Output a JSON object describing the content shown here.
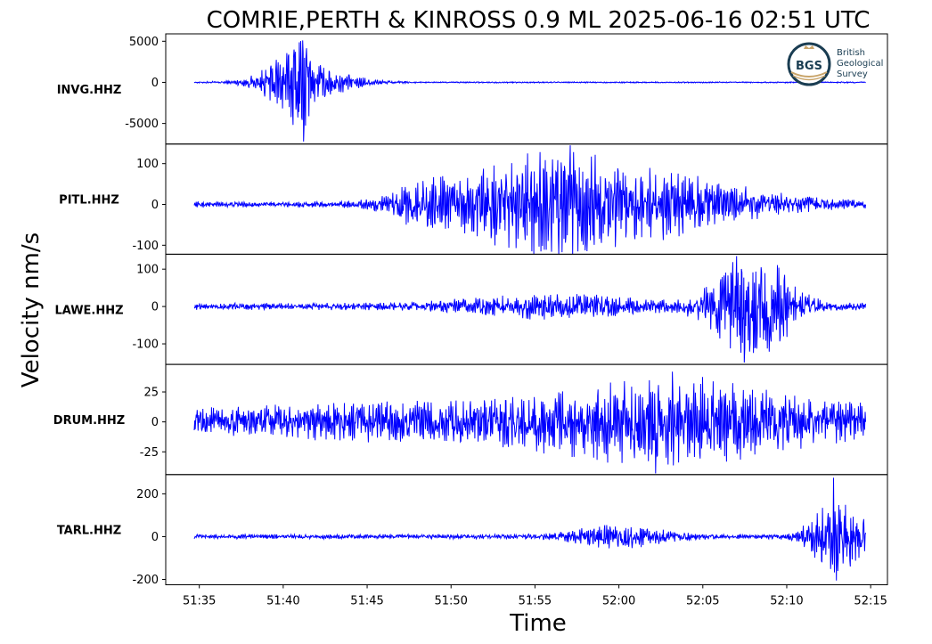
{
  "chart_data": {
    "type": "line",
    "title": "COMRIE,PERTH & KINROSS 0.9 ML   2025-06-16 02:51 UTC",
    "xlabel": "Time",
    "ylabel": "Velocity nm/s",
    "xlim": [
      "51:33",
      "52:16"
    ],
    "x_ticks": [
      "51:35",
      "51:40",
      "51:45",
      "51:50",
      "51:55",
      "52:00",
      "52:05",
      "52:10",
      "52:15"
    ],
    "trace_start": "51:34.7",
    "trace_end": "52:14.7",
    "line_color": "#0000ff",
    "logo": {
      "mark": "BGS",
      "lines": [
        "British",
        "Geological",
        "Survey"
      ]
    },
    "panels": [
      {
        "channel": "INVG.HHZ",
        "ylim": [
          -7500,
          5900
        ],
        "yticks": [
          5000,
          0,
          -5000
        ],
        "ytick_labels": [
          "5000",
          "0",
          "-5000"
        ],
        "bursts": [
          {
            "t": "51:40.5",
            "amp": 1800,
            "width": 1.6
          },
          {
            "t": "51:41.0",
            "amp": 5000,
            "width": 0.4
          },
          {
            "t": "51:41.5",
            "amp": 1400,
            "width": 3
          }
        ],
        "noise": 60,
        "spike_min": -7200,
        "spike_max": 5100
      },
      {
        "channel": "PITL.HHZ",
        "ylim": [
          -122,
          148
        ],
        "yticks": [
          100,
          0,
          -100
        ],
        "ytick_labels": [
          "100",
          "0",
          "-100"
        ],
        "bursts": [
          {
            "t": "51:48.5",
            "amp": 25,
            "width": 2
          },
          {
            "t": "51:55.5",
            "amp": 80,
            "width": 6
          },
          {
            "t": "52:03",
            "amp": 40,
            "width": 7
          }
        ],
        "noise": 5,
        "spike_max": 145,
        "spike_min": -115
      },
      {
        "channel": "LAWE.HHZ",
        "ylim": [
          -155,
          140
        ],
        "yticks": [
          100,
          0,
          -100
        ],
        "ytick_labels": [
          "100",
          "0",
          "-100"
        ],
        "bursts": [
          {
            "t": "51:56",
            "amp": 20,
            "width": 6
          },
          {
            "t": "52:08",
            "amp": 110,
            "width": 2.5
          }
        ],
        "noise": 7,
        "spike_max": 135,
        "spike_min": -150
      },
      {
        "channel": "DRUM.HHZ",
        "ylim": [
          -44,
          48
        ],
        "yticks": [
          25,
          0,
          -25
        ],
        "ytick_labels": [
          "25",
          "0",
          "-25"
        ],
        "bursts": [
          {
            "t": "51:45",
            "amp": 8,
            "width": 15
          },
          {
            "t": "52:04",
            "amp": 22,
            "width": 10
          }
        ],
        "noise": 4,
        "spike_max": 42,
        "spike_min": -43
      },
      {
        "channel": "TARL.HHZ",
        "ylim": [
          -225,
          290
        ],
        "yticks": [
          200,
          0,
          -200
        ],
        "ytick_labels": [
          "200",
          "0",
          "-200"
        ],
        "bursts": [
          {
            "t": "52:00",
            "amp": 35,
            "width": 3
          },
          {
            "t": "52:13",
            "amp": 150,
            "width": 1.6
          }
        ],
        "noise": 8,
        "spike_max": 275,
        "spike_min": -205
      }
    ]
  }
}
